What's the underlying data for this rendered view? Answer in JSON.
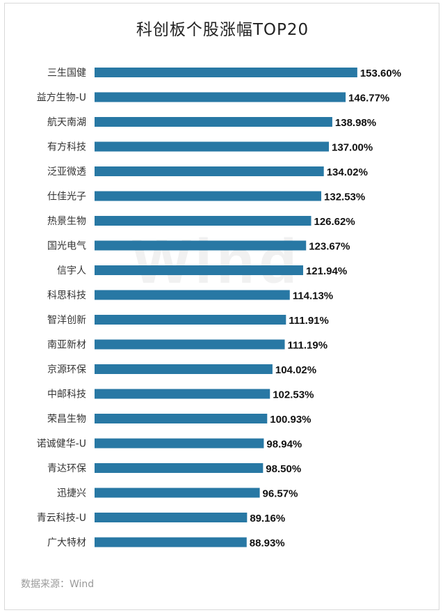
{
  "chart_data": {
    "type": "bar",
    "orientation": "horizontal",
    "title": "科创板个股涨幅TOP20",
    "categories": [
      "三生国健",
      "益方生物-U",
      "航天南湖",
      "有方科技",
      "泛亚微透",
      "仕佳光子",
      "热景生物",
      "国光电气",
      "信宇人",
      "科思科技",
      "智洋创新",
      "南亚新材",
      "京源环保",
      "中邮科技",
      "荣昌生物",
      "诺诚健华-U",
      "青达环保",
      "迅捷兴",
      "青云科技-U",
      "广大特材"
    ],
    "values": [
      153.6,
      146.77,
      138.98,
      137.0,
      134.02,
      132.53,
      126.62,
      123.67,
      121.94,
      114.13,
      111.91,
      111.19,
      104.02,
      102.53,
      100.93,
      98.94,
      98.5,
      96.57,
      89.16,
      88.93
    ],
    "labels": [
      "153.60%",
      "146.77%",
      "138.98%",
      "137.00%",
      "134.02%",
      "132.53%",
      "126.62%",
      "123.67%",
      "121.94%",
      "114.13%",
      "111.91%",
      "111.19%",
      "104.02%",
      "102.53%",
      "100.93%",
      "98.94%",
      "98.50%",
      "96.57%",
      "89.16%",
      "88.93%"
    ],
    "bar_color": "#2878a4",
    "grid": false,
    "legend": "none"
  },
  "watermark": "Wind",
  "source": "数据来源：Wind"
}
